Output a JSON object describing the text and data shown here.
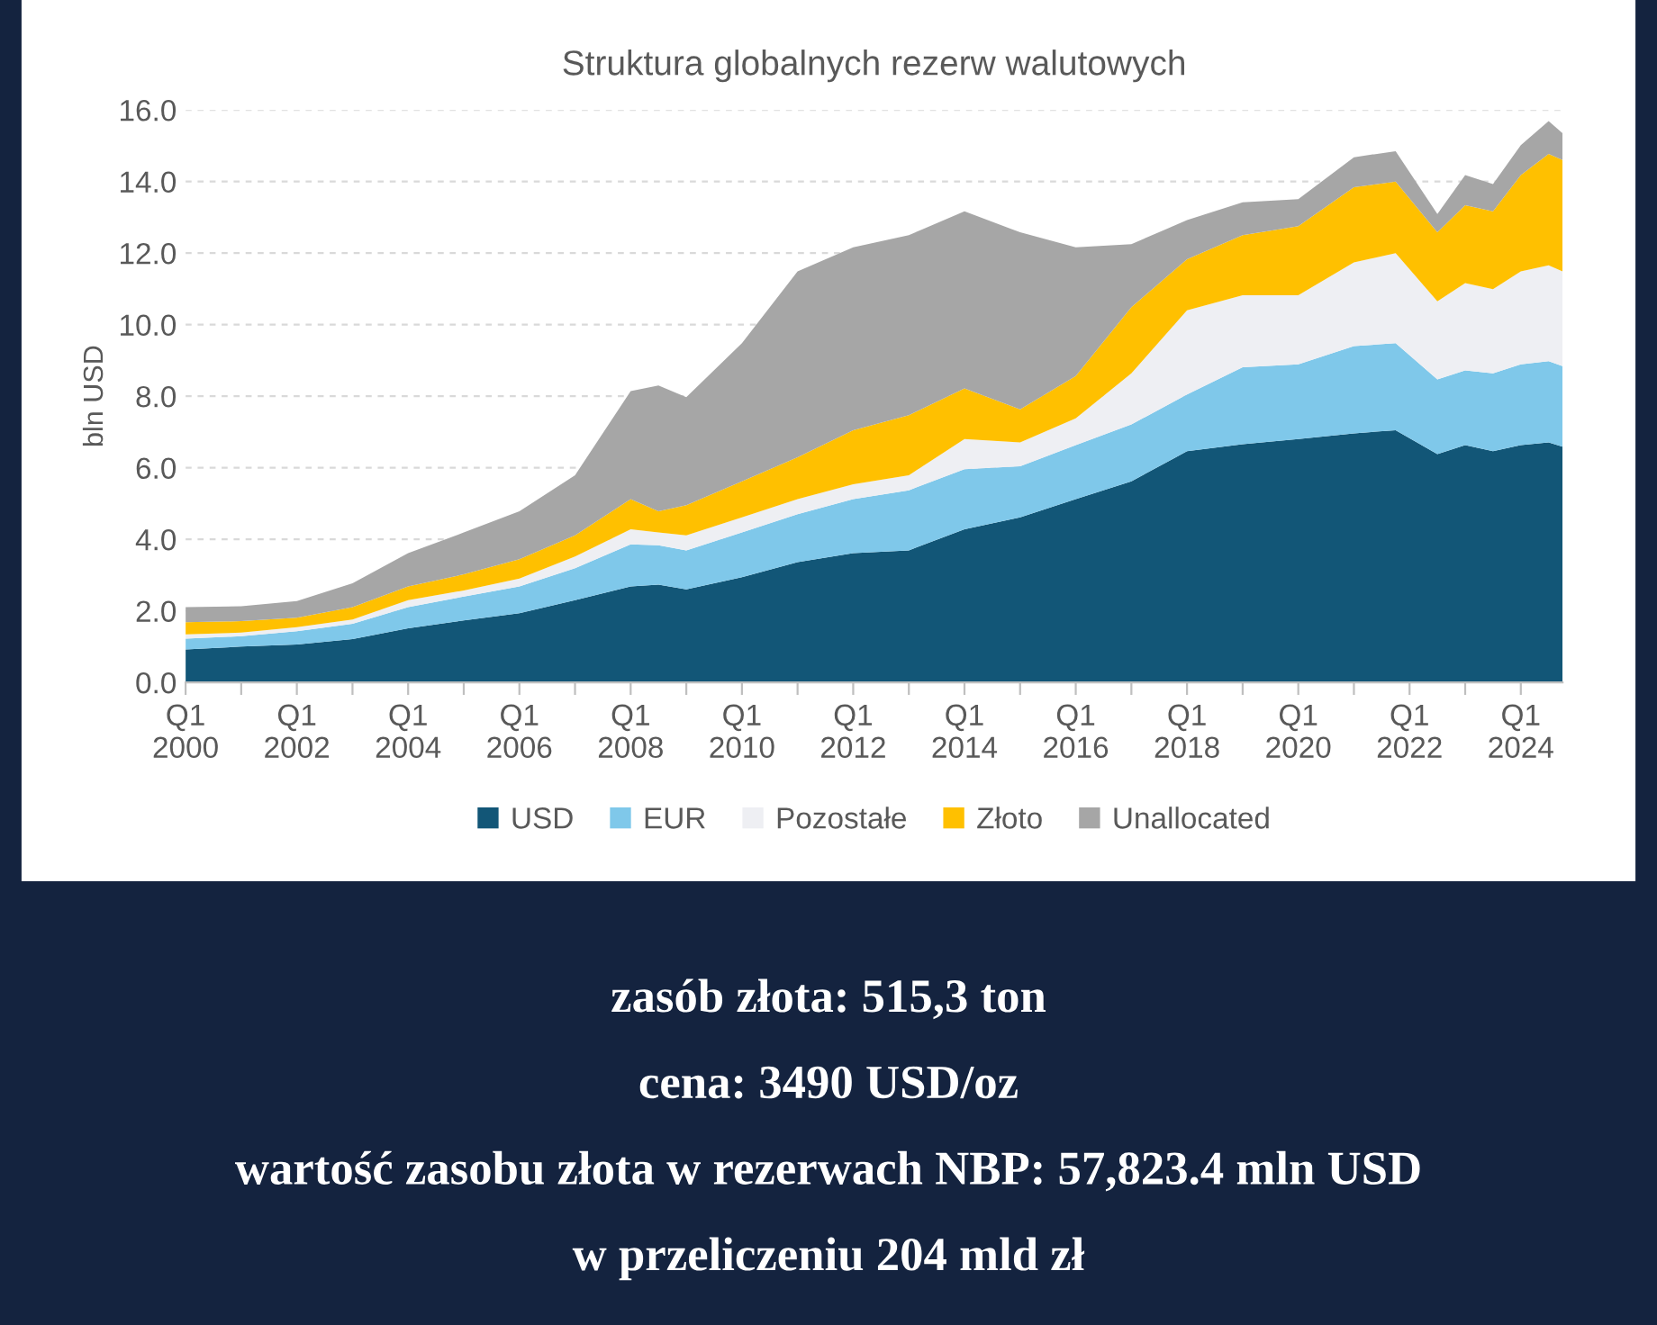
{
  "chart_data": {
    "type": "area",
    "stacked": true,
    "title": "Struktura globalnych rezerw walutowych",
    "ylabel": "bln USD",
    "x": [
      "2000-01",
      "2001-01",
      "2002-01",
      "2003-01",
      "2004-01",
      "2005-01",
      "2006-01",
      "2007-01",
      "2008-01",
      "2008-07",
      "2009-01",
      "2010-01",
      "2011-01",
      "2012-01",
      "2013-01",
      "2014-01",
      "2015-01",
      "2016-01",
      "2017-01",
      "2018-01",
      "2019-01",
      "2020-01",
      "2021-01",
      "2021-10",
      "2022-07",
      "2023-01",
      "2023-07",
      "2024-01",
      "2024-07",
      "2024-10"
    ],
    "series": [
      {
        "name": "USD",
        "color": "#125677",
        "values": [
          0.92,
          1.0,
          1.06,
          1.21,
          1.51,
          1.73,
          1.93,
          2.3,
          2.68,
          2.73,
          2.6,
          2.94,
          3.36,
          3.61,
          3.69,
          4.28,
          4.61,
          5.12,
          5.62,
          6.46,
          6.66,
          6.8,
          6.96,
          7.05,
          6.38,
          6.63,
          6.46,
          6.63,
          6.71,
          6.59
        ]
      },
      {
        "name": "EUR",
        "color": "#7fc8ea",
        "values": [
          0.3,
          0.29,
          0.37,
          0.43,
          0.59,
          0.67,
          0.75,
          0.89,
          1.18,
          1.1,
          1.09,
          1.25,
          1.34,
          1.51,
          1.68,
          1.68,
          1.43,
          1.51,
          1.59,
          1.59,
          2.15,
          2.09,
          2.44,
          2.43,
          2.09,
          2.09,
          2.18,
          2.26,
          2.27,
          2.25
        ]
      },
      {
        "name": "Pozostałe",
        "color": "#eeeff3",
        "values": [
          0.12,
          0.1,
          0.11,
          0.12,
          0.2,
          0.17,
          0.22,
          0.33,
          0.42,
          0.36,
          0.42,
          0.42,
          0.42,
          0.42,
          0.42,
          0.84,
          0.67,
          0.75,
          1.43,
          2.35,
          2.01,
          1.93,
          2.34,
          2.52,
          2.18,
          2.44,
          2.35,
          2.6,
          2.68,
          2.65
        ]
      },
      {
        "name": "Złoto",
        "color": "#ffc000",
        "values": [
          0.34,
          0.32,
          0.27,
          0.34,
          0.38,
          0.45,
          0.54,
          0.59,
          0.84,
          0.59,
          0.84,
          1.01,
          1.17,
          1.51,
          1.68,
          1.42,
          0.92,
          1.18,
          1.85,
          1.43,
          1.68,
          1.93,
          2.1,
          2.0,
          1.93,
          2.18,
          2.18,
          2.69,
          3.11,
          3.11
        ]
      },
      {
        "name": "Unallocated",
        "color": "#a6a6a6",
        "values": [
          0.42,
          0.42,
          0.46,
          0.67,
          0.93,
          1.17,
          1.34,
          1.68,
          3.02,
          3.52,
          3.02,
          3.86,
          5.2,
          5.11,
          5.03,
          4.95,
          4.95,
          3.6,
          1.76,
          1.09,
          0.92,
          0.76,
          0.84,
          0.85,
          0.51,
          0.84,
          0.76,
          0.84,
          0.92,
          0.75
        ]
      }
    ],
    "xlim": [
      "2000-01",
      "2024-10"
    ],
    "xticks": [
      {
        "value": "2000-01",
        "label": "Q1\n2000"
      },
      {
        "value": "2001-01",
        "label": null
      },
      {
        "value": "2002-01",
        "label": "Q1\n2002"
      },
      {
        "value": "2003-01",
        "label": null
      },
      {
        "value": "2004-01",
        "label": "Q1\n2004"
      },
      {
        "value": "2005-01",
        "label": null
      },
      {
        "value": "2006-01",
        "label": "Q1\n2006"
      },
      {
        "value": "2007-01",
        "label": null
      },
      {
        "value": "2008-01",
        "label": "Q1\n2008"
      },
      {
        "value": "2009-01",
        "label": null
      },
      {
        "value": "2010-01",
        "label": "Q1\n2010"
      },
      {
        "value": "2011-01",
        "label": null
      },
      {
        "value": "2012-01",
        "label": "Q1\n2012"
      },
      {
        "value": "2013-01",
        "label": null
      },
      {
        "value": "2014-01",
        "label": "Q1\n2014"
      },
      {
        "value": "2015-01",
        "label": null
      },
      {
        "value": "2016-01",
        "label": "Q1\n2016"
      },
      {
        "value": "2017-01",
        "label": null
      },
      {
        "value": "2018-01",
        "label": "Q1\n2018"
      },
      {
        "value": "2019-01",
        "label": null
      },
      {
        "value": "2020-01",
        "label": "Q1\n2020"
      },
      {
        "value": "2021-01",
        "label": null
      },
      {
        "value": "2022-01",
        "label": "Q1\n2022"
      },
      {
        "value": "2023-01",
        "label": null
      },
      {
        "value": "2024-01",
        "label": "Q1\n2024"
      }
    ],
    "ylim": [
      0,
      16
    ],
    "yticks": [
      {
        "value": 0,
        "label": "0.0"
      },
      {
        "value": 2,
        "label": "2.0"
      },
      {
        "value": 4,
        "label": "4.0"
      },
      {
        "value": 6,
        "label": "6.0"
      },
      {
        "value": 8,
        "label": "8.0"
      },
      {
        "value": 10,
        "label": "10.0"
      },
      {
        "value": 12,
        "label": "12.0"
      },
      {
        "value": 14,
        "label": "14.0"
      },
      {
        "value": 16,
        "label": "16.0"
      }
    ],
    "grid": "y",
    "legend": "bottom",
    "annotations": [
      "zasób złota: 515,3 ton",
      "cena: 3490 USD/oz",
      "wartość zasobu złota w rezerwach NBP: 57,823.4 mln USD",
      "w przeliczeniu 204 mld zł"
    ]
  }
}
